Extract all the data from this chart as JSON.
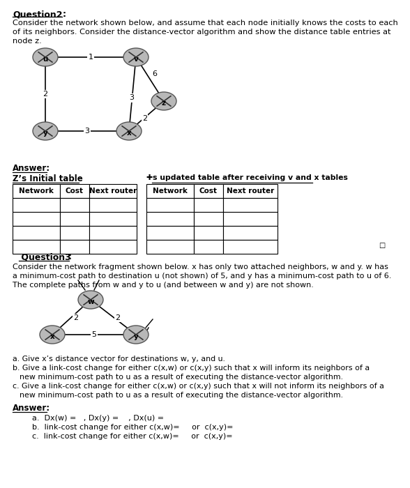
{
  "bg_color": "#ffffff",
  "q2_heading": "Question2",
  "q2_colon": ":",
  "q2_body": "Consider the network shown below, and assume that each node initially knows the costs to each\nof its neighbors. Consider the distance-vector algorithm and show the distance table entries at\nnode z.",
  "answer_label": "Answer:",
  "z_initial_label": "Z’s Initial table",
  "z_updated_label": "✚s updated table after receiving v and x tables",
  "table_headers": [
    "Network",
    "Cost",
    "Next router"
  ],
  "table_rows": 4,
  "q3_heading": "Question3",
  "q3_body": "Consider the network fragment shown below. x has only two attached neighbors, w and y. w has\na minimum-cost path to destination u (not shown) of 5, and y has a minimum-cost path to u of 6.\nThe complete paths from w and y to u (and between w and y) are not shown.",
  "q3_bullet_a": "a. Give x’s distance vector for destinations w, y, and u.",
  "q3_bullet_b1": "b. Give a link-cost change for either c(x,w) or c(x,y) such that x will inform its neighbors of a",
  "q3_bullet_b2": "new minimum-cost path to u as a result of executing the distance-vector algorithm.",
  "q3_bullet_c1": "c. Give a link-cost change for either c(x,w) or c(x,y) such that x will not inform its neighbors of a",
  "q3_bullet_c2": "new minimum-cost path to u as a result of executing the distance-vector algorithm.",
  "ans2_label": "Answer:",
  "ans2_a": "a.  Dx(w) =   , Dx(y) =    , Dx(u) =",
  "ans2_b": "b.  link-cost change for either c(x,w)=     or  c(x,y)=",
  "ans2_c": "c.  link-cost change for either c(x,w)=     or  c(x,y)="
}
